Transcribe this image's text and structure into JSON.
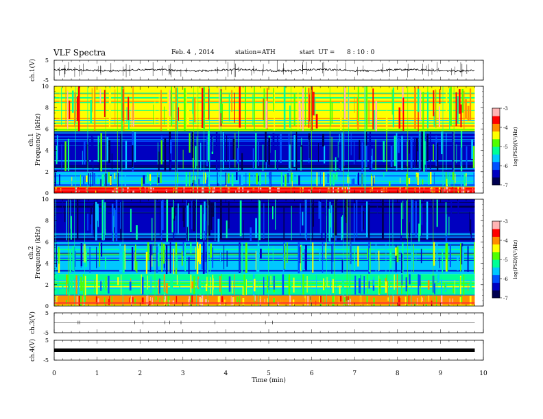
{
  "header": {
    "title": "VLF Spectra",
    "date": "Feb. 4  , 2014",
    "station": "station=ATH",
    "start_label": "start  UT =",
    "start_time": "8 : 10 : 0"
  },
  "colors": {
    "scale": [
      "#000050",
      "#0000c0",
      "#0050ff",
      "#00c8ff",
      "#00ff96",
      "#50ff00",
      "#ffff00",
      "#ff8c00",
      "#ff0000",
      "#ffb4b4",
      "#ffffff"
    ]
  },
  "chart_data": [
    {
      "type": "line",
      "panel": "ch1-waveform",
      "ylabel": "ch.1(V)",
      "ylim": [
        -5,
        5
      ],
      "yticks": [
        "5",
        "-5"
      ],
      "description_values": {
        "baseline": 0.0,
        "spike_max": 4.5,
        "spike_min": -4.0
      }
    },
    {
      "type": "heatmap",
      "panel": "ch1-spectrogram",
      "ylabel_top": "ch.1",
      "ylabel": "Frequency  (kHz)",
      "ylim": [
        0,
        10
      ],
      "yticks": [
        "0",
        "2",
        "4",
        "6",
        "8",
        "10"
      ],
      "colorbar": {
        "label": "log(PSD)(V²/Hz)",
        "range": [
          -7,
          -3
        ],
        "ticks": [
          "-3",
          "-4",
          "-5",
          "-6",
          "-7"
        ]
      },
      "bands_khz": [
        {
          "from": 0.0,
          "to": 0.6,
          "level": -3.8
        },
        {
          "from": 0.6,
          "to": 2.0,
          "level": -5.7
        },
        {
          "from": 2.0,
          "to": 5.8,
          "level": -6.3
        },
        {
          "from": 5.8,
          "to": 10.0,
          "level": -4.6
        }
      ]
    },
    {
      "type": "heatmap",
      "panel": "ch2-spectrogram",
      "ylabel_top": "ch.2",
      "ylabel": "Frequency  (kHz)",
      "ylim": [
        0,
        10
      ],
      "yticks": [
        "0",
        "2",
        "4",
        "6",
        "8",
        "10"
      ],
      "colorbar": {
        "label": "log(PSD)(V²/Hz)",
        "range": [
          -7,
          -3
        ],
        "ticks": [
          "-3",
          "-4",
          "-5",
          "-6",
          "-7"
        ]
      },
      "bands_khz": [
        {
          "from": 0.0,
          "to": 1.0,
          "level": -4.2
        },
        {
          "from": 1.0,
          "to": 3.0,
          "level": -5.3
        },
        {
          "from": 3.0,
          "to": 6.0,
          "level": -5.8
        },
        {
          "from": 6.0,
          "to": 10.0,
          "level": -6.4
        }
      ]
    },
    {
      "type": "line",
      "panel": "ch3-waveform",
      "ylabel": "ch.3(V)",
      "ylim": [
        -5,
        5
      ],
      "yticks": [
        "5",
        "-5"
      ],
      "description_values": {
        "baseline": 0.0
      }
    },
    {
      "type": "line",
      "panel": "ch4-waveform",
      "ylabel": "ch.4(V)",
      "ylim": [
        -5,
        5
      ],
      "yticks": [
        "5",
        "-5"
      ],
      "description_values": {
        "baseline": 0.0
      }
    }
  ],
  "xaxis": {
    "label": "Time  (min)",
    "xlim": [
      0,
      10
    ],
    "ticks": [
      "0",
      "1",
      "2",
      "3",
      "4",
      "5",
      "6",
      "7",
      "8",
      "9",
      "10"
    ],
    "data_end": 9.8
  }
}
